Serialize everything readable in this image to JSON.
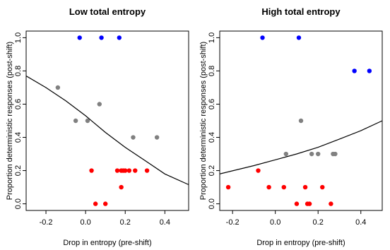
{
  "chart_data": [
    {
      "type": "scatter",
      "title": "Low total entropy",
      "xlabel": "Drop in entropy (pre-shift)",
      "ylabel": "Proportion deterministic responses (post-shift)",
      "xticks": [
        "-0.2",
        "0.0",
        "0.2",
        "0.4"
      ],
      "xtick_values": [
        -0.2,
        0.0,
        0.2,
        0.4
      ],
      "yticks": [
        "0.0",
        "0.2",
        "0.4",
        "0.6",
        "0.8",
        "1.0"
      ],
      "ytick_values": [
        0.0,
        0.2,
        0.4,
        0.6,
        0.8,
        1.0
      ],
      "xlim": [
        -0.3,
        0.52
      ],
      "ylim": [
        -0.04,
        1.04
      ],
      "grid": false,
      "legend": "none",
      "series": [
        {
          "color": "#0000ff",
          "points": [
            [
              -0.03,
              1.0
            ],
            [
              0.08,
              1.0
            ],
            [
              0.17,
              1.0
            ]
          ]
        },
        {
          "color": "#808080",
          "points": [
            [
              -0.14,
              0.7
            ],
            [
              -0.05,
              0.5
            ],
            [
              0.01,
              0.5
            ],
            [
              0.07,
              0.6
            ],
            [
              0.24,
              0.4
            ],
            [
              0.36,
              0.4
            ]
          ]
        },
        {
          "color": "#ff0000",
          "points": [
            [
              0.03,
              0.2
            ],
            [
              0.05,
              0.0
            ],
            [
              0.1,
              0.0
            ],
            [
              0.16,
              0.2
            ],
            [
              0.18,
              0.2
            ],
            [
              0.19,
              0.2
            ],
            [
              0.2,
              0.2
            ],
            [
              0.22,
              0.2
            ],
            [
              0.25,
              0.2
            ],
            [
              0.31,
              0.2
            ],
            [
              0.18,
              0.1
            ]
          ]
        }
      ],
      "fit_line": {
        "color": "#000000",
        "x": [
          -0.3,
          -0.2,
          -0.1,
          0.0,
          0.1,
          0.2,
          0.3,
          0.4,
          0.52
        ],
        "y": [
          0.77,
          0.7,
          0.62,
          0.53,
          0.43,
          0.34,
          0.26,
          0.18,
          0.115
        ]
      }
    },
    {
      "type": "scatter",
      "title": "High total entropy",
      "xlabel": "Drop in entropy (pre-shift)",
      "ylabel": "Proportion deterministic responses (post-shift)",
      "xticks": [
        "-0.2",
        "0.0",
        "0.2",
        "0.4"
      ],
      "xtick_values": [
        -0.2,
        0.0,
        0.2,
        0.4
      ],
      "yticks": [
        "0.0",
        "0.2",
        "0.4",
        "0.6",
        "0.8",
        "1.0"
      ],
      "ytick_values": [
        0.0,
        0.2,
        0.4,
        0.6,
        0.8,
        1.0
      ],
      "xlim": [
        -0.26,
        0.5
      ],
      "ylim": [
        -0.04,
        1.04
      ],
      "grid": false,
      "legend": "none",
      "series": [
        {
          "color": "#0000ff",
          "points": [
            [
              -0.06,
              1.0
            ],
            [
              0.11,
              1.0
            ],
            [
              0.37,
              0.8
            ],
            [
              0.44,
              0.8
            ]
          ]
        },
        {
          "color": "#808080",
          "points": [
            [
              0.12,
              0.5
            ],
            [
              0.05,
              0.3
            ],
            [
              0.17,
              0.3
            ],
            [
              0.2,
              0.3
            ],
            [
              0.27,
              0.3
            ],
            [
              0.28,
              0.3
            ]
          ]
        },
        {
          "color": "#ff0000",
          "points": [
            [
              -0.22,
              0.1
            ],
            [
              -0.08,
              0.2
            ],
            [
              -0.03,
              0.1
            ],
            [
              0.04,
              0.1
            ],
            [
              0.1,
              0.0
            ],
            [
              0.14,
              0.1
            ],
            [
              0.15,
              0.0
            ],
            [
              0.16,
              0.0
            ],
            [
              0.22,
              0.1
            ],
            [
              0.26,
              0.0
            ]
          ]
        }
      ],
      "fit_line": {
        "color": "#000000",
        "x": [
          -0.26,
          -0.1,
          0.0,
          0.1,
          0.2,
          0.3,
          0.4,
          0.5
        ],
        "y": [
          0.18,
          0.23,
          0.265,
          0.3,
          0.34,
          0.39,
          0.44,
          0.5
        ]
      }
    }
  ]
}
